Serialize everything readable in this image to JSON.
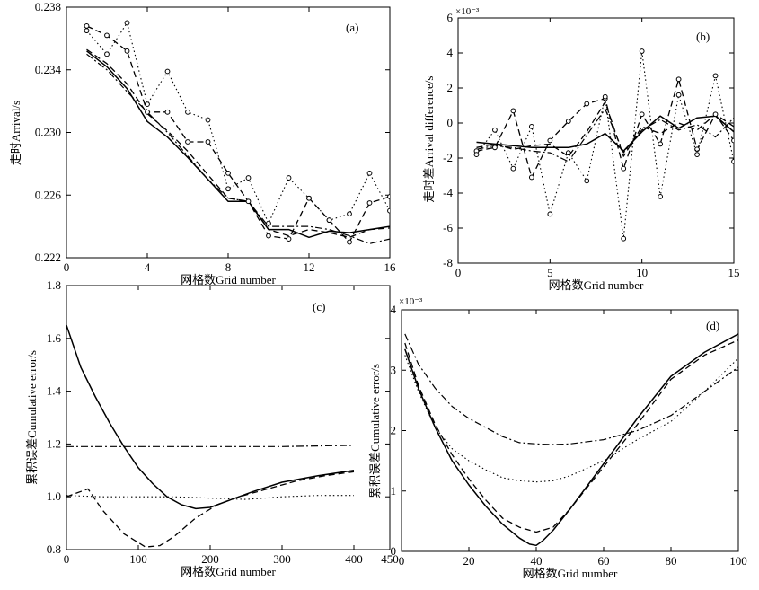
{
  "figure": {
    "panel_count": 4
  },
  "chart_data": [
    {
      "id": "a",
      "type": "line",
      "panel_label": "(a)",
      "xlabel": "网格数Grid number",
      "ylabel": "走时Arrival/s",
      "xlim": [
        0,
        16
      ],
      "ylim": [
        0.222,
        0.238
      ],
      "xticks": [
        0,
        4,
        8,
        12,
        16
      ],
      "yticks": [
        0.222,
        0.226,
        0.23,
        0.234,
        0.238
      ],
      "x": [
        1,
        2,
        3,
        4,
        5,
        6,
        7,
        8,
        9,
        10,
        11,
        12,
        13,
        14,
        15,
        16
      ],
      "series": [
        {
          "style": "solid",
          "markers": false,
          "values": [
            0.2352,
            0.2342,
            0.2328,
            0.2307,
            0.2297,
            0.2284,
            0.227,
            0.2256,
            0.2256,
            0.2238,
            0.2238,
            0.2233,
            0.2237,
            0.2236,
            0.2238,
            0.224
          ]
        },
        {
          "style": "dash",
          "markers": false,
          "values": [
            0.2353,
            0.2344,
            0.2331,
            0.2312,
            0.2301,
            0.2288,
            0.2273,
            0.2258,
            0.2256,
            0.2238,
            0.2234,
            0.2238,
            0.2236,
            0.2233,
            0.2238,
            0.2239
          ]
        },
        {
          "style": "dashdot",
          "markers": false,
          "values": [
            0.235,
            0.234,
            0.2326,
            0.2313,
            0.23,
            0.2285,
            0.227,
            0.2258,
            0.2256,
            0.224,
            0.224,
            0.224,
            0.2238,
            0.2234,
            0.2229,
            0.2232
          ]
        },
        {
          "style": "dash",
          "markers": true,
          "values": [
            0.2368,
            0.2362,
            0.2352,
            0.2313,
            0.2313,
            0.2294,
            0.2294,
            0.2274,
            0.2256,
            0.2234,
            0.2232,
            0.2258,
            0.2244,
            0.223,
            0.2255,
            0.2259
          ]
        },
        {
          "style": "dot",
          "markers": true,
          "values": [
            0.2365,
            0.235,
            0.237,
            0.2318,
            0.2339,
            0.2313,
            0.2308,
            0.2264,
            0.2271,
            0.2242,
            0.2271,
            0.2258,
            0.2244,
            0.2248,
            0.2274,
            0.225
          ]
        }
      ]
    },
    {
      "id": "b",
      "type": "line",
      "panel_label": "(b)",
      "scale_note": "×10⁻³",
      "xlabel": "网格数Grid number",
      "ylabel": "走时差Arrival difference/s",
      "xlim": [
        0,
        15
      ],
      "ylim": [
        -8,
        6
      ],
      "xticks": [
        0,
        5,
        10,
        15
      ],
      "yticks": [
        -8,
        -6,
        -4,
        -2,
        0,
        2,
        4,
        6
      ],
      "x": [
        1,
        2,
        3,
        4,
        5,
        6,
        7,
        8,
        9,
        10,
        11,
        12,
        13,
        14,
        15
      ],
      "series": [
        {
          "style": "solid",
          "markers": false,
          "values": [
            -1.1,
            -1.2,
            -1.3,
            -1.4,
            -1.4,
            -1.4,
            -1.2,
            -0.6,
            -1.6,
            -0.5,
            0.4,
            -0.3,
            0.3,
            0.4,
            -0.5
          ]
        },
        {
          "style": "dash",
          "markers": false,
          "values": [
            -1.4,
            -1.2,
            -1.5,
            -1.3,
            -1.2,
            -1.9,
            -0.5,
            1.2,
            -1.9,
            -0.2,
            -0.6,
            0.0,
            -0.4,
            0.5,
            -0.2
          ]
        },
        {
          "style": "dashdot",
          "markers": false,
          "values": [
            -1.5,
            -1.3,
            -1.4,
            -1.6,
            -1.7,
            -2.2,
            -0.7,
            0.8,
            -1.7,
            -0.4,
            0.2,
            -0.4,
            -0.1,
            -0.8,
            0.3
          ]
        },
        {
          "style": "dash",
          "markers": true,
          "values": [
            -1.6,
            -1.4,
            0.7,
            -3.1,
            -1.0,
            0.1,
            1.1,
            1.4,
            -2.6,
            0.5,
            -1.2,
            2.5,
            -1.5,
            0.5,
            -1.0
          ]
        },
        {
          "style": "dot",
          "markers": true,
          "values": [
            -1.8,
            -0.4,
            -2.6,
            -0.2,
            -5.2,
            -1.7,
            -3.3,
            1.5,
            -6.6,
            4.1,
            -4.2,
            1.6,
            -1.8,
            2.7,
            -2.2
          ]
        }
      ]
    },
    {
      "id": "c",
      "type": "line",
      "panel_label": "(c)",
      "xlabel": "网格数Grid number",
      "ylabel": "累积误差Cumulative error/s",
      "xlim": [
        0,
        450
      ],
      "ylim": [
        0.8,
        1.8
      ],
      "xticks": [
        0,
        100,
        200,
        300,
        400,
        450
      ],
      "yticks": [
        0.8,
        1.0,
        1.2,
        1.4,
        1.6,
        1.8
      ],
      "series": [
        {
          "style": "solid",
          "x": [
            0,
            20,
            40,
            60,
            80,
            100,
            120,
            140,
            160,
            180,
            200,
            230,
            260,
            300,
            350,
            400
          ],
          "values": [
            1.65,
            1.49,
            1.38,
            1.28,
            1.19,
            1.11,
            1.05,
            1.0,
            0.97,
            0.955,
            0.96,
            0.99,
            1.02,
            1.055,
            1.08,
            1.1
          ]
        },
        {
          "style": "dash",
          "x": [
            0,
            20,
            30,
            50,
            80,
            110,
            130,
            150,
            180,
            210,
            240,
            280,
            320,
            360,
            400
          ],
          "values": [
            1.0,
            1.02,
            1.03,
            0.95,
            0.86,
            0.81,
            0.815,
            0.85,
            0.92,
            0.97,
            1.0,
            1.03,
            1.06,
            1.08,
            1.095
          ]
        },
        {
          "style": "dashdot",
          "x": [
            0,
            100,
            200,
            300,
            400
          ],
          "values": [
            1.19,
            1.19,
            1.19,
            1.19,
            1.195
          ]
        },
        {
          "style": "dot",
          "x": [
            0,
            50,
            100,
            150,
            200,
            250,
            300,
            350,
            400
          ],
          "values": [
            1.005,
            1.0,
            1.0,
            1.0,
            0.995,
            0.99,
            1.0,
            1.005,
            1.005
          ]
        }
      ]
    },
    {
      "id": "d",
      "type": "line",
      "panel_label": "(d)",
      "scale_note": "×10⁻³",
      "xlabel": "网格数Grid number",
      "ylabel": "累积误差Cumulative error/s",
      "xlim": [
        0,
        100
      ],
      "ylim": [
        0,
        4
      ],
      "xticks": [
        0,
        20,
        40,
        60,
        80,
        100
      ],
      "yticks": [
        0,
        1,
        2,
        3,
        4
      ],
      "series": [
        {
          "style": "solid",
          "x": [
            1,
            5,
            10,
            15,
            20,
            25,
            30,
            35,
            38,
            40,
            42,
            45,
            50,
            60,
            70,
            80,
            90,
            100
          ],
          "values": [
            3.35,
            2.7,
            2.05,
            1.5,
            1.1,
            0.75,
            0.45,
            0.22,
            0.12,
            0.1,
            0.18,
            0.35,
            0.7,
            1.45,
            2.2,
            2.9,
            3.3,
            3.6
          ]
        },
        {
          "style": "dash",
          "x": [
            1,
            5,
            10,
            15,
            20,
            25,
            30,
            35,
            40,
            45,
            50,
            60,
            70,
            80,
            90,
            100
          ],
          "values": [
            3.45,
            2.75,
            2.1,
            1.6,
            1.2,
            0.85,
            0.55,
            0.4,
            0.32,
            0.4,
            0.7,
            1.4,
            2.1,
            2.85,
            3.25,
            3.5
          ]
        },
        {
          "style": "dot",
          "x": [
            1,
            5,
            10,
            15,
            20,
            25,
            30,
            35,
            40,
            45,
            50,
            60,
            70,
            80,
            90,
            100
          ],
          "values": [
            3.25,
            2.65,
            2.05,
            1.7,
            1.5,
            1.35,
            1.22,
            1.17,
            1.15,
            1.17,
            1.25,
            1.5,
            1.85,
            2.15,
            2.65,
            3.2
          ]
        },
        {
          "style": "dashdot",
          "x": [
            1,
            5,
            10,
            15,
            20,
            25,
            30,
            35,
            40,
            45,
            50,
            60,
            70,
            80,
            90,
            100
          ],
          "values": [
            3.6,
            3.1,
            2.7,
            2.4,
            2.2,
            2.05,
            1.9,
            1.8,
            1.78,
            1.77,
            1.78,
            1.85,
            2.0,
            2.25,
            2.65,
            3.05
          ]
        }
      ]
    }
  ]
}
